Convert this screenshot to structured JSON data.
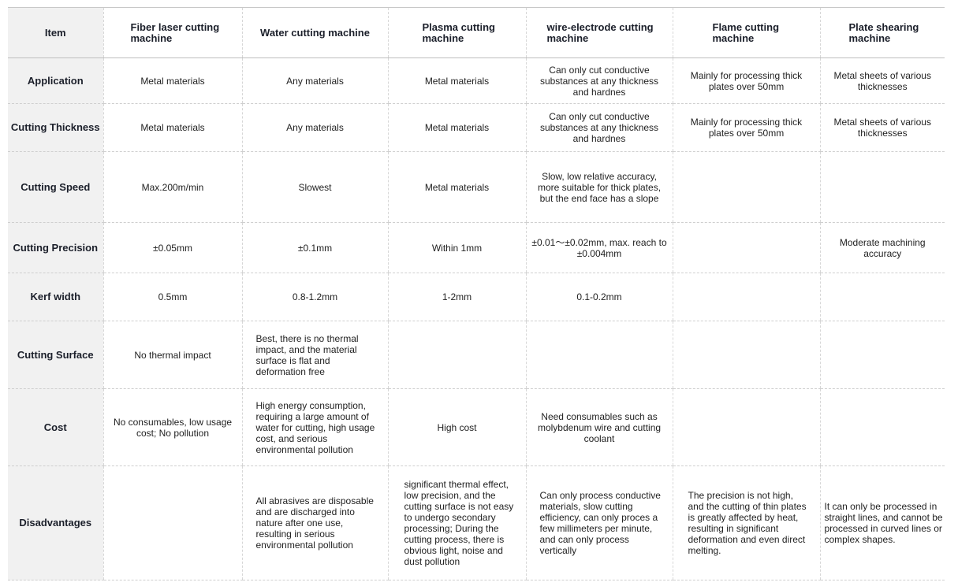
{
  "header": {
    "item": "Item",
    "fiber": "Fiber laser cutting machine",
    "water": "Water cutting machine",
    "plasma": "Plasma cutting machine",
    "wire": "wire-electrode cutting machine",
    "flame": "Flame cutting machine",
    "shear": "Plate shearing machine"
  },
  "rows": [
    {
      "label": "Application",
      "fiber": "Metal materials",
      "water": "Any materials",
      "plasma": "Metal materials",
      "wire": "Can only cut conductive substances at any thickness and hardnes",
      "flame": "Mainly for processing thick plates over 50mm",
      "shear": "Metal sheets of various thicknesses"
    },
    {
      "label": "Cutting Thickness",
      "fiber": "Metal materials",
      "water": "Any materials",
      "plasma": "Metal materials",
      "wire": "Can only cut conductive substances at any thickness and hardnes",
      "flame": "Mainly for processing thick plates over 50mm",
      "shear": "Metal sheets of various thicknesses"
    },
    {
      "label": "Cutting Speed",
      "fiber": "Max.200m/min",
      "water": "Slowest",
      "plasma": "Metal materials",
      "wire": "Slow, low relative accuracy, more suitable for thick plates, but the end face has a slope",
      "flame": "",
      "shear": ""
    },
    {
      "label": "Cutting Precision",
      "fiber": "±0.05mm",
      "water": "±0.1mm",
      "plasma": "Within 1mm",
      "wire": "±0.01～±0.02mm, max. reach to ±0.004mm",
      "flame": "",
      "shear": "Moderate machining accuracy"
    },
    {
      "label": "Kerf width",
      "fiber": "0.5mm",
      "water": "0.8-1.2mm",
      "plasma": "1-2mm",
      "wire": "0.1-0.2mm",
      "flame": "",
      "shear": ""
    },
    {
      "label": "Cutting Surface",
      "fiber": "No thermal impact",
      "water": "Best, there is no thermal impact, and the material surface is flat and deformation free",
      "plasma": "",
      "wire": "",
      "flame": "",
      "shear": ""
    },
    {
      "label": "Cost",
      "fiber": "No consumables, low usage cost; No pollution",
      "water": "High energy consumption, requiring a large amount of water for cutting, high usage cost, and serious environmental pollution",
      "plasma": "High cost",
      "wire": "Need consumables such as molybdenum wire and cutting coolant",
      "flame": "",
      "shear": ""
    },
    {
      "label": "Disadvantages",
      "fiber": "",
      "water": "All abrasives are disposable and are discharged into nature after one use, resulting in serious environmental pollution",
      "plasma": "significant thermal effect, low precision, and the cutting surface is not easy to undergo secondary processing; During the cutting process, there is obvious light, noise and dust pollution",
      "wire": "Can only process conductive materials, slow cutting efficiency, can only proces a few millimeters per minute, and can only process vertically",
      "flame": "The precision is not high, and the cutting of thin plates is greatly affected by heat, resulting in significant deformation and even direct melting.",
      "shear": "It can only be processed in straight lines, and cannot be processed in curved lines or complex shapes."
    }
  ]
}
